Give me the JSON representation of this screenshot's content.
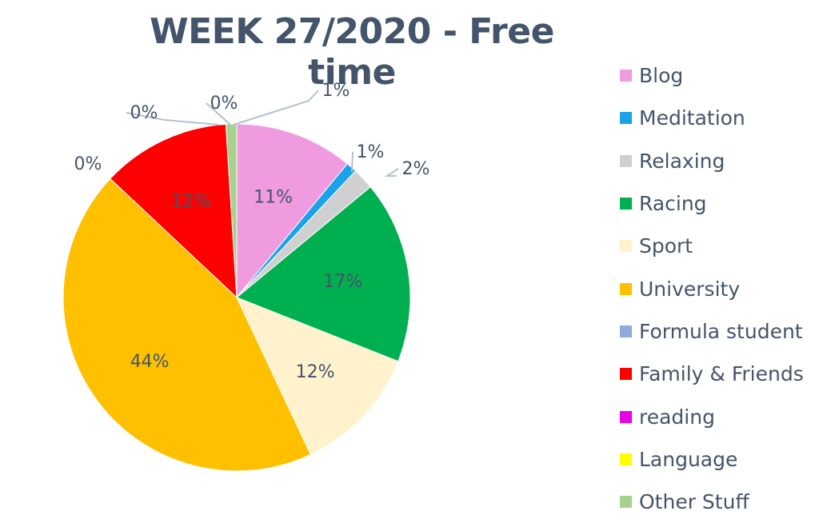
{
  "chart_data": {
    "type": "pie",
    "title": "WEEK 27/2020 - Free time",
    "categories": [
      "Blog",
      "Meditation",
      "Relaxing",
      "Racing",
      "Sport",
      "University",
      "Formula student",
      "Family & Friends",
      "reading",
      "Language",
      "Other Stuff"
    ],
    "values": [
      11,
      1,
      2,
      17,
      12,
      44,
      0,
      12,
      0,
      0,
      1
    ],
    "labels": [
      "11%",
      "1%",
      "2%",
      "17%",
      "12%",
      "44%",
      "0%",
      "12%",
      "0%",
      "0%",
      "1%"
    ],
    "colors": [
      "#f09ae0",
      "#1aa3e8",
      "#d0d0d0",
      "#00b050",
      "#fff2cc",
      "#ffc000",
      "#8faadc",
      "#ff0000",
      "#e600e6",
      "#ffff00",
      "#a9d18e"
    ],
    "legend": "right"
  }
}
